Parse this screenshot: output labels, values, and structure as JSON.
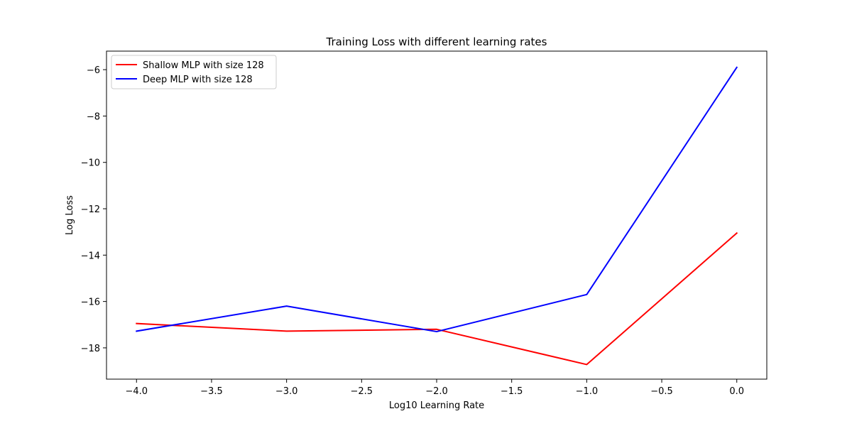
{
  "chart_data": {
    "type": "line",
    "title": "Training Loss with different learning rates",
    "xlabel": "Log10 Learning Rate",
    "ylabel": "Log Loss",
    "xlim": [
      -4.2,
      0.2
    ],
    "ylim": [
      -19.35,
      -5.2
    ],
    "xticks": [
      -4.0,
      -3.5,
      -3.0,
      -2.5,
      -2.0,
      -1.5,
      -1.0,
      -0.5,
      0.0
    ],
    "xtick_labels": [
      "−4.0",
      "−3.5",
      "−3.0",
      "−2.5",
      "−2.0",
      "−1.5",
      "−1.0",
      "−0.5",
      "0.0"
    ],
    "yticks": [
      -18,
      -16,
      -14,
      -12,
      -10,
      -8,
      -6
    ],
    "ytick_labels": [
      "−18",
      "−16",
      "−14",
      "−12",
      "−10",
      "−8",
      "−6"
    ],
    "grid": false,
    "legend_position": "top-left",
    "x": [
      -4,
      -3,
      -2,
      -1,
      0
    ],
    "series": [
      {
        "name": "Shallow MLP with size 128",
        "color": "#ff0000",
        "values": [
          -16.95,
          -17.28,
          -17.2,
          -18.72,
          -13.05
        ]
      },
      {
        "name": "Deep MLP with size 128",
        "color": "#0000ff",
        "values": [
          -17.28,
          -16.2,
          -17.3,
          -15.7,
          -5.9
        ]
      }
    ]
  }
}
